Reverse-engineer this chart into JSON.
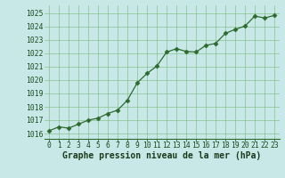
{
  "x": [
    0,
    1,
    2,
    3,
    4,
    5,
    6,
    7,
    8,
    9,
    10,
    11,
    12,
    13,
    14,
    15,
    16,
    17,
    18,
    19,
    20,
    21,
    22,
    23
  ],
  "y": [
    1016.2,
    1016.5,
    1016.4,
    1016.7,
    1017.0,
    1017.15,
    1017.5,
    1017.75,
    1018.5,
    1019.8,
    1020.5,
    1021.05,
    1022.1,
    1022.35,
    1022.15,
    1022.1,
    1022.6,
    1022.75,
    1023.5,
    1023.8,
    1024.05,
    1024.8,
    1024.65,
    1024.85
  ],
  "line_color": "#2d6a2d",
  "marker": "D",
  "marker_size": 2.5,
  "bg_color": "#c8e8e8",
  "grid_color": "#7ab87a",
  "ylabel_ticks": [
    1016,
    1017,
    1018,
    1019,
    1020,
    1021,
    1022,
    1023,
    1024,
    1025
  ],
  "xlabel_label": "Graphe pression niveau de la mer (hPa)",
  "xlim": [
    -0.5,
    23.5
  ],
  "ylim": [
    1015.6,
    1025.6
  ],
  "tick_label_color": "#1a4a1a",
  "xlabel_color": "#1a3a1a",
  "tick_fontsize": 5.8,
  "xlabel_fontsize": 7.0
}
